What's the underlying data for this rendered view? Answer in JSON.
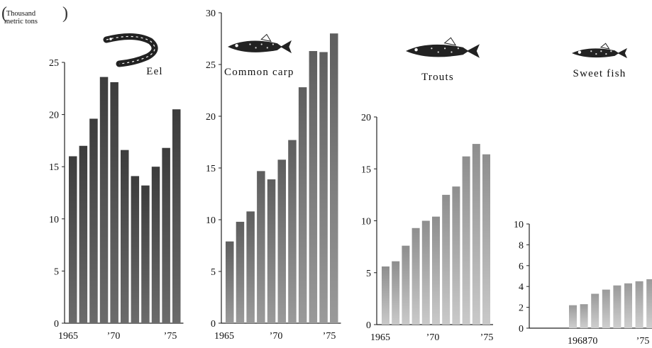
{
  "unit_label": {
    "line1": "Thousand",
    "line2": "metric tons"
  },
  "colors": {
    "bar_dark": "#4a4a4a",
    "bar_mid": "#7a7a7a",
    "bar_light": "#b8b8b8",
    "axis": "#222222",
    "fish_body": "#222222"
  },
  "chart_data": [
    {
      "type": "bar",
      "title": "Eel",
      "icon": "eel-icon",
      "x": [
        1965,
        1966,
        1967,
        1968,
        1969,
        1970,
        1971,
        1972,
        1973,
        1974,
        1975
      ],
      "values": [
        16.0,
        17.0,
        19.6,
        23.6,
        23.1,
        16.6,
        14.1,
        13.2,
        15.0,
        16.8,
        20.5
      ],
      "ylim": [
        0,
        25
      ],
      "yticks": [
        "0",
        "5",
        "10",
        "15",
        "20",
        "25"
      ],
      "xtick_labels": [
        "1965",
        "’70",
        "’75"
      ],
      "xlabel": "",
      "ylabel": ""
    },
    {
      "type": "bar",
      "title": "Common carp",
      "icon": "carp-icon",
      "x": [
        1965,
        1966,
        1967,
        1968,
        1969,
        1970,
        1971,
        1972,
        1973,
        1974,
        1975
      ],
      "values": [
        7.9,
        9.8,
        10.8,
        14.7,
        13.9,
        15.8,
        17.7,
        22.8,
        26.3,
        26.2,
        28.0
      ],
      "ylim": [
        0,
        30
      ],
      "yticks": [
        "0",
        "5",
        "10",
        "15",
        "20",
        "25",
        "30"
      ],
      "xtick_labels": [
        "1965",
        "’70",
        "’75"
      ],
      "xlabel": "",
      "ylabel": ""
    },
    {
      "type": "bar",
      "title": "Trouts",
      "icon": "trout-icon",
      "x": [
        1965,
        1966,
        1967,
        1968,
        1969,
        1970,
        1971,
        1972,
        1973,
        1974,
        1975
      ],
      "values": [
        5.6,
        6.1,
        7.6,
        9.3,
        10.0,
        10.4,
        12.5,
        13.3,
        16.2,
        17.4,
        16.4
      ],
      "ylim": [
        0,
        20
      ],
      "yticks": [
        "0",
        "5",
        "10",
        "15",
        "20"
      ],
      "xtick_labels": [
        "1965",
        "’70",
        "’75"
      ],
      "xlabel": "",
      "ylabel": ""
    },
    {
      "type": "bar",
      "title": "Sweet fish",
      "icon": "sweetfish-icon",
      "x": [
        1968,
        1969,
        1970,
        1971,
        1972,
        1973,
        1974,
        1975
      ],
      "values": [
        2.2,
        2.3,
        3.3,
        3.7,
        4.1,
        4.3,
        4.5,
        4.7
      ],
      "ylim": [
        0,
        10
      ],
      "yticks": [
        "0",
        "2",
        "4",
        "6",
        "8",
        "10"
      ],
      "xtick_labels": [
        "1968",
        "’70",
        "’75"
      ],
      "xlabel": "",
      "ylabel": ""
    }
  ]
}
